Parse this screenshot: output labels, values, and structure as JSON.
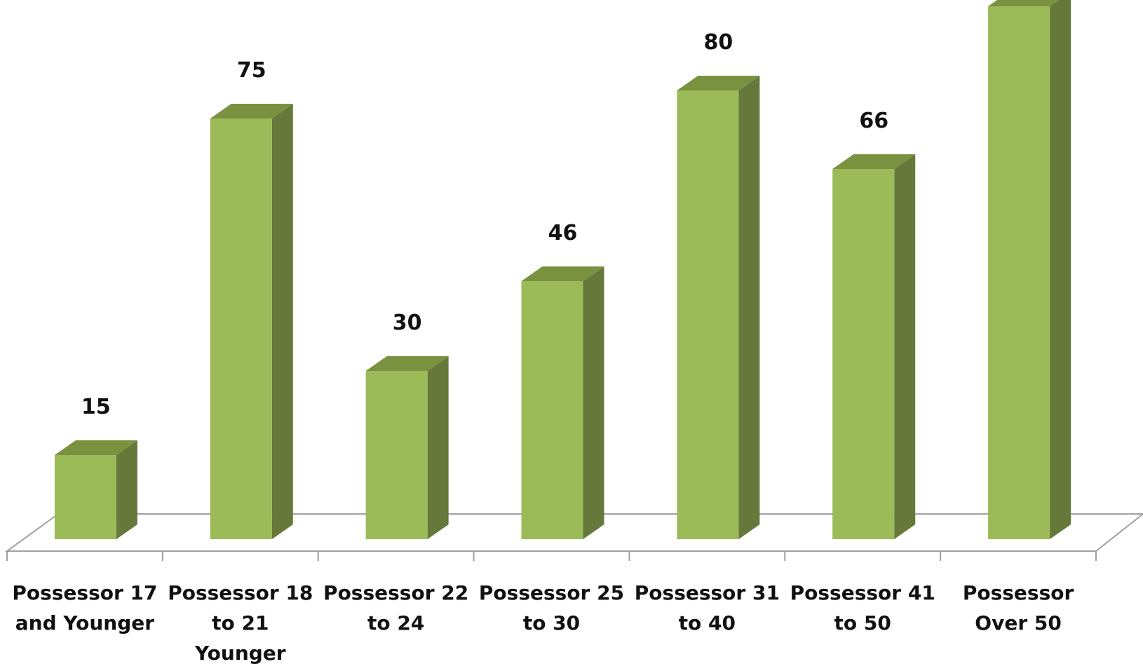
{
  "chart_data": {
    "type": "bar",
    "categories": [
      "Possessor 17 and Younger",
      "Possessor 18 to 21 Younger",
      "Possessor 22 to 24",
      "Possessor 25 to 30",
      "Possessor 31 to 40",
      "Possessor 41 to 50",
      "Possessor Over 50"
    ],
    "category_label_lines": [
      [
        "Possessor 17",
        "and Younger"
      ],
      [
        "Possessor 18",
        "to 21",
        "Younger"
      ],
      [
        "Possessor 22",
        "to 24"
      ],
      [
        "Possessor 25",
        "to 30"
      ],
      [
        "Possessor 31",
        "to 40"
      ],
      [
        "Possessor 41",
        "to 50"
      ],
      [
        "Possessor",
        "Over 50"
      ]
    ],
    "values": [
      15,
      75,
      30,
      46,
      80,
      66,
      95
    ],
    "data_labels": [
      "15",
      "75",
      "30",
      "46",
      "80",
      "66",
      ""
    ],
    "title": "",
    "xlabel": "",
    "ylabel": "",
    "ylim": [
      0,
      95
    ],
    "grid": false,
    "legend": "none",
    "three_d": true,
    "colors": {
      "bar_front": "#9BBB59",
      "bar_side": "#66783A",
      "bar_top": "#7A9140",
      "floor": "#A0A0A0",
      "text": "#111111"
    }
  }
}
